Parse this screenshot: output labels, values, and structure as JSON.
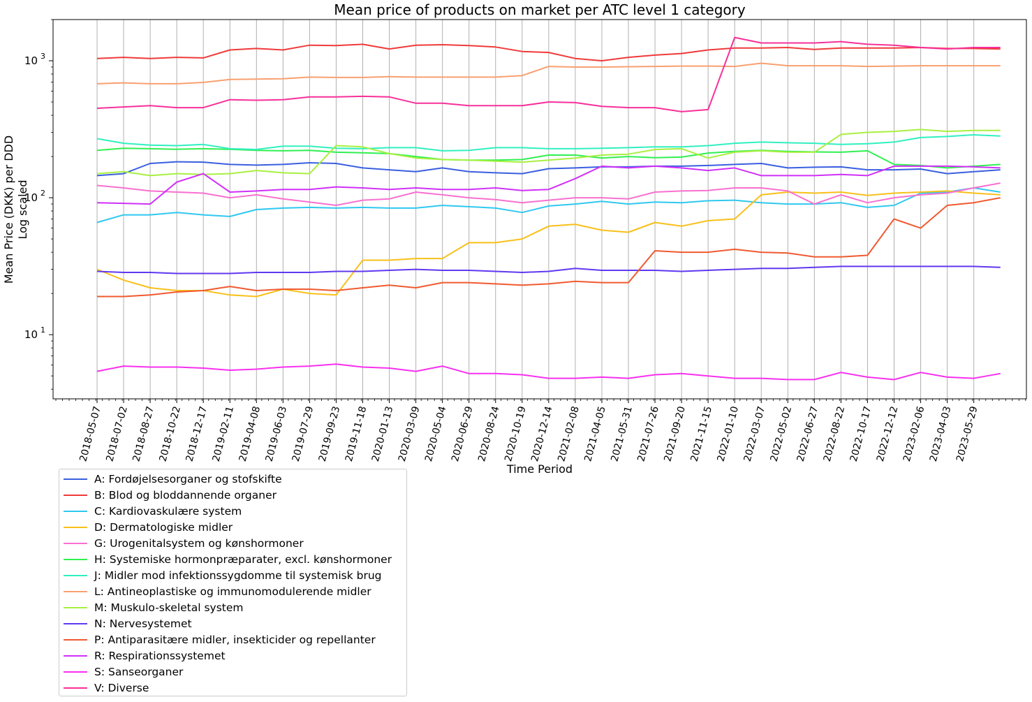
{
  "chart_data": {
    "type": "line",
    "title": "Mean price of products on market per ATC level 1 category",
    "xlabel": "Time Period",
    "ylabel": "Mean Price (DKK) per DDD",
    "ylabel2": "Log scaled",
    "yscale": "log",
    "ylim": [
      3.4,
      2000
    ],
    "yticks": [
      {
        "value": 10,
        "label": "10^1"
      },
      {
        "value": 100,
        "label": "10^2"
      },
      {
        "value": 1000,
        "label": "10^3"
      }
    ],
    "grid": "vertical",
    "legend_position": "below-left",
    "x": [
      "2018-05-07",
      "2018-07-02",
      "2018-08-27",
      "2018-10-22",
      "2018-12-17",
      "2019-02-11",
      "2019-04-08",
      "2019-06-03",
      "2019-07-29",
      "2019-09-23",
      "2019-11-18",
      "2020-01-13",
      "2020-03-09",
      "2020-05-04",
      "2020-06-29",
      "2020-08-24",
      "2020-10-19",
      "2020-12-14",
      "2021-02-08",
      "2021-04-05",
      "2021-05-31",
      "2021-07-26",
      "2021-09-20",
      "2021-11-15",
      "2022-01-10",
      "2022-03-07",
      "2022-05-02",
      "2022-06-27",
      "2022-08-22",
      "2022-10-17",
      "2022-12-12",
      "2023-02-06",
      "2023-04-03",
      "2023-05-29",
      "2023-07-10"
    ],
    "xticklabels": [
      "2018-05-07",
      "2018-07-02",
      "2018-08-27",
      "2018-10-22",
      "2018-12-17",
      "2019-02-11",
      "2019-04-08",
      "2019-06-03",
      "2019-07-29",
      "2019-09-23",
      "2019-11-18",
      "2020-01-13",
      "2020-03-09",
      "2020-05-04",
      "2020-06-29",
      "2020-08-24",
      "2020-10-19",
      "2020-12-14",
      "2021-02-08",
      "2021-04-05",
      "2021-05-31",
      "2021-07-26",
      "2021-09-20",
      "2021-11-15",
      "2022-01-10",
      "2022-03-07",
      "2022-05-02",
      "2022-06-27",
      "2022-08-22",
      "2022-10-17",
      "2022-12-12",
      "2023-02-06",
      "2023-04-03",
      "2023-05-29"
    ],
    "series": [
      {
        "name": "A: Fordøjelsesorganer og stofskifte",
        "color": "#3a5fe0",
        "values": [
          145,
          150,
          178,
          183,
          182,
          175,
          173,
          175,
          180,
          178,
          165,
          160,
          155,
          165,
          155,
          152,
          150,
          163,
          165,
          168,
          168,
          170,
          170,
          172,
          175,
          178,
          165,
          167,
          168,
          160,
          160,
          162,
          150,
          155,
          160
        ]
      },
      {
        "name": "B: Blod og bloddannende organer",
        "color": "#f03a3a",
        "values": [
          1040,
          1060,
          1040,
          1060,
          1050,
          1200,
          1230,
          1200,
          1300,
          1290,
          1320,
          1220,
          1300,
          1310,
          1290,
          1260,
          1170,
          1150,
          1040,
          1000,
          1060,
          1100,
          1130,
          1200,
          1240,
          1240,
          1250,
          1210,
          1240,
          1240,
          1240,
          1250,
          1230,
          1230,
          1220
        ]
      },
      {
        "name": "C: Kardiovaskulære system",
        "color": "#30c8f0",
        "values": [
          66,
          75,
          75,
          78,
          75,
          73,
          82,
          84,
          85,
          84,
          85,
          84,
          84,
          88,
          86,
          84,
          78,
          87,
          90,
          94,
          90,
          93,
          92,
          95,
          96,
          92,
          90,
          90,
          92,
          85,
          88,
          108,
          110,
          118,
          110
        ]
      },
      {
        "name": "D: Dermatologiske midler",
        "color": "#f8c01a",
        "values": [
          30,
          25,
          22,
          21,
          21,
          19.5,
          19,
          21.5,
          20,
          19.5,
          35,
          35,
          36,
          36,
          47,
          47,
          50,
          62,
          64,
          58,
          56,
          66,
          62,
          68,
          70,
          105,
          110,
          108,
          110,
          104,
          108,
          110,
          112,
          108,
          105
        ]
      },
      {
        "name": "G: Urogenitalsystem og kønshormoner",
        "color": "#f870d0",
        "values": [
          123,
          118,
          112,
          110,
          108,
          100,
          105,
          98,
          93,
          88,
          96,
          98,
          110,
          105,
          100,
          97,
          92,
          96,
          100,
          100,
          98,
          110,
          112,
          113,
          118,
          118,
          112,
          90,
          105,
          92,
          100,
          105,
          108,
          118,
          128
        ]
      },
      {
        "name": "H: Systemiske hormonpræparater, excl. kønshormoner",
        "color": "#30f050",
        "values": [
          222,
          230,
          228,
          226,
          228,
          226,
          222,
          220,
          222,
          215,
          213,
          210,
          200,
          190,
          188,
          188,
          190,
          205,
          205,
          195,
          200,
          196,
          198,
          212,
          218,
          222,
          218,
          216,
          215,
          220,
          175,
          172,
          165,
          170,
          175
        ]
      },
      {
        "name": "J: Midler mod infektionssygdomme til systemisk brug",
        "color": "#30f0c0",
        "values": [
          270,
          250,
          242,
          240,
          245,
          228,
          225,
          238,
          238,
          230,
          228,
          232,
          232,
          220,
          222,
          232,
          232,
          228,
          228,
          230,
          232,
          235,
          235,
          240,
          250,
          255,
          252,
          250,
          245,
          248,
          255,
          275,
          280,
          288,
          282
        ]
      },
      {
        "name": "L: Antineoplastiske og immunomodulerende midler",
        "color": "#f8a070",
        "values": [
          680,
          690,
          680,
          680,
          695,
          730,
          735,
          740,
          760,
          755,
          755,
          765,
          760,
          760,
          760,
          760,
          780,
          910,
          900,
          900,
          905,
          910,
          915,
          915,
          910,
          960,
          920,
          920,
          920,
          910,
          915,
          920,
          920,
          920,
          920
        ]
      },
      {
        "name": "M: Muskulo-skeletal system",
        "color": "#a8f040",
        "values": [
          150,
          155,
          145,
          150,
          148,
          150,
          158,
          152,
          150,
          240,
          235,
          210,
          195,
          190,
          188,
          185,
          182,
          188,
          195,
          205,
          208,
          225,
          228,
          195,
          215,
          220,
          215,
          215,
          290,
          300,
          305,
          315,
          305,
          310,
          310
        ]
      },
      {
        "name": "N: Nervesystemet",
        "color": "#6038f0",
        "values": [
          29,
          28.5,
          28.5,
          28,
          28,
          28,
          28.5,
          28.5,
          28.5,
          29,
          29,
          29.5,
          30,
          29.5,
          29.5,
          29,
          28.5,
          29,
          30.5,
          29.5,
          29.5,
          29.5,
          29,
          29.5,
          30,
          30.5,
          30.5,
          31,
          31.5,
          31.5,
          31.5,
          31.5,
          31.5,
          31.5,
          31
        ]
      },
      {
        "name": "P: Antiparasitære midler, insekticider og repellanter",
        "color": "#f05a30",
        "values": [
          19,
          19,
          19.5,
          20.5,
          21,
          22.5,
          21,
          21.5,
          21.5,
          21,
          22,
          23,
          22,
          24,
          24,
          23.5,
          23,
          23.5,
          24.5,
          24,
          24,
          41,
          40,
          40,
          42,
          40,
          39.5,
          37,
          37,
          38,
          70,
          60,
          88,
          92,
          100
        ]
      },
      {
        "name": "R: Respirationssystemet",
        "color": "#d030f8",
        "values": [
          92,
          91,
          90,
          130,
          150,
          110,
          112,
          115,
          115,
          120,
          118,
          115,
          118,
          115,
          115,
          118,
          113,
          115,
          138,
          170,
          165,
          170,
          165,
          158,
          165,
          145,
          145,
          145,
          148,
          145,
          170,
          170,
          170,
          168,
          165
        ]
      },
      {
        "name": "S: Sanseorganer",
        "color": "#f830f0",
        "values": [
          5.4,
          5.9,
          5.8,
          5.8,
          5.7,
          5.5,
          5.6,
          5.8,
          5.9,
          6.1,
          5.8,
          5.7,
          5.4,
          5.9,
          5.2,
          5.2,
          5.1,
          4.8,
          4.8,
          4.9,
          4.8,
          5.1,
          5.2,
          5.0,
          4.8,
          4.8,
          4.7,
          4.7,
          5.3,
          4.9,
          4.7,
          5.3,
          4.9,
          4.8,
          5.2
        ]
      },
      {
        "name": "V: Diverse",
        "color": "#f8309a",
        "values": [
          450,
          460,
          470,
          455,
          455,
          520,
          515,
          520,
          545,
          545,
          550,
          545,
          490,
          490,
          470,
          470,
          470,
          500,
          495,
          465,
          455,
          455,
          425,
          440,
          1480,
          1350,
          1350,
          1350,
          1380,
          1320,
          1300,
          1250,
          1220,
          1250,
          1250
        ]
      }
    ]
  }
}
